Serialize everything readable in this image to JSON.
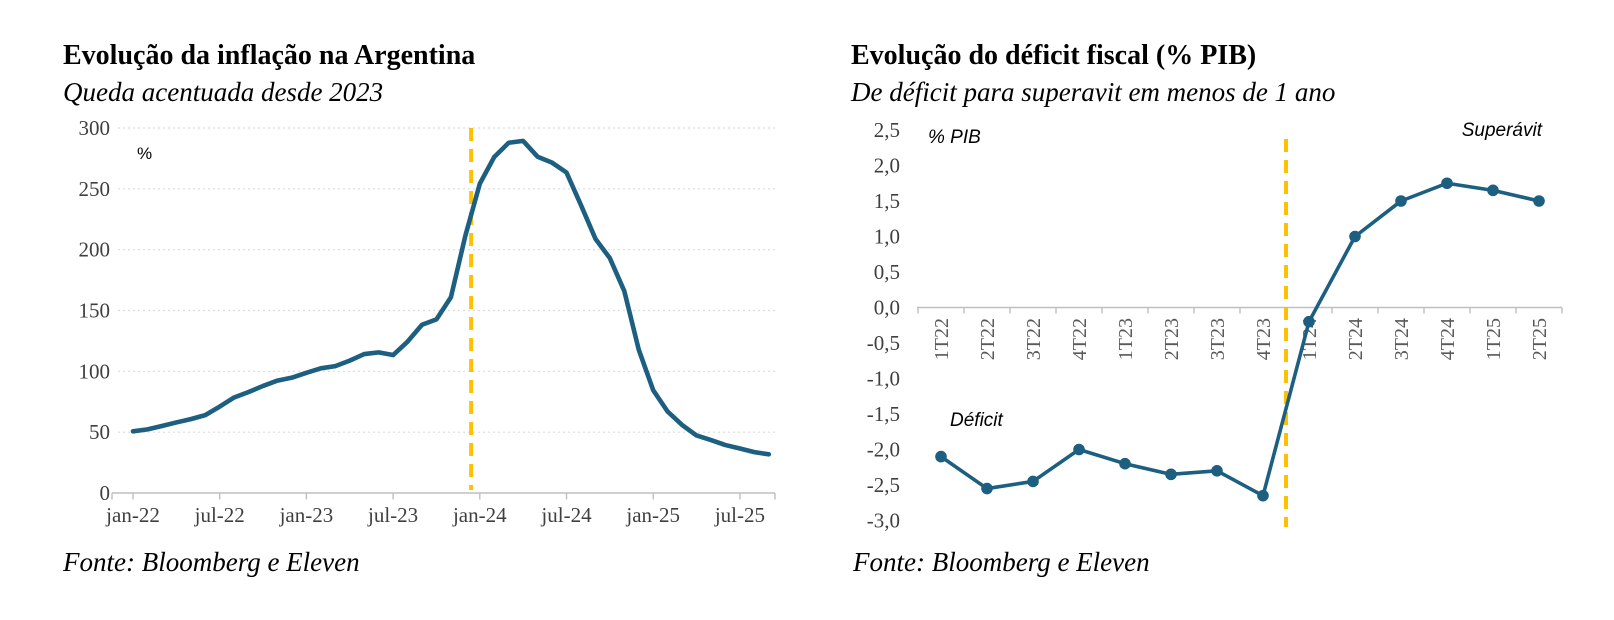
{
  "colors": {
    "line": "#1d5f80",
    "marker": "#1d5f80",
    "highlight": "#FFC000",
    "grid": "#dcdcdc",
    "axis": "#bfbfbf",
    "tick_label": "#3f3f3f",
    "rotated_tick_label": "#595959",
    "text": "#000000",
    "background": "#ffffff"
  },
  "chart_data": [
    {
      "id": "inflation-argentina",
      "type": "line",
      "title": "Evolução da inflação na Argentina",
      "subtitle": "Queda acentuada desde 2023",
      "source": "Fonte: Bloomberg e Eleven",
      "unit_label": "%",
      "legend": "none",
      "grid": "horizontal-dotted",
      "line_color": "#1d5f80",
      "ylim": [
        0,
        300
      ],
      "ytick_step": 50,
      "yticks": [
        0,
        50,
        100,
        150,
        200,
        250,
        300
      ],
      "xtick_labels": [
        "jan-22",
        "jul-22",
        "jan-23",
        "jul-23",
        "jan-24",
        "jul-24",
        "jan-25",
        "jul-25"
      ],
      "xtick_indices": [
        0,
        6,
        12,
        18,
        24,
        30,
        36,
        42
      ],
      "x": [
        "jan-22",
        "fev-22",
        "mar-22",
        "abr-22",
        "mai-22",
        "jun-22",
        "jul-22",
        "ago-22",
        "set-22",
        "out-22",
        "nov-22",
        "dez-22",
        "jan-23",
        "fev-23",
        "mar-23",
        "abr-23",
        "mai-23",
        "jun-23",
        "jul-23",
        "ago-23",
        "set-23",
        "out-23",
        "nov-23",
        "dez-23",
        "jan-24",
        "fev-24",
        "mar-24",
        "abr-24",
        "mai-24",
        "jun-24",
        "jul-24",
        "ago-24",
        "set-24",
        "out-24",
        "nov-24",
        "dez-24",
        "jan-25",
        "fev-25",
        "mar-25",
        "abr-25",
        "mai-25",
        "jun-25",
        "jul-25",
        "ago-25",
        "set-25"
      ],
      "values": [
        50.7,
        52.3,
        55.1,
        58.0,
        60.7,
        64.0,
        71.0,
        78.5,
        83.0,
        88.0,
        92.4,
        94.8,
        98.8,
        102.5,
        104.3,
        108.8,
        114.2,
        115.6,
        113.4,
        124.4,
        138.3,
        142.7,
        160.9,
        211.4,
        254.2,
        276.2,
        287.9,
        289.4,
        276.4,
        271.5,
        263.4,
        236.7,
        209.0,
        193.0,
        166.0,
        117.8,
        84.5,
        66.9,
        55.9,
        47.3,
        43.5,
        39.4,
        36.6,
        33.6,
        31.8
      ],
      "highlight_line": {
        "label": "jan-24",
        "x_index": 23.4,
        "color": "#FFC000",
        "style": "dashed"
      }
    },
    {
      "id": "fiscal-deficit-pib",
      "type": "line",
      "title": "Evolução do déficit fiscal (% PIB)",
      "subtitle": "De déficit para superavit em menos de 1 ano",
      "source": "Fonte: Bloomberg e Eleven",
      "unit_label": "% PIB",
      "legend": "none",
      "grid": "none",
      "line_color": "#1d5f80",
      "markers": true,
      "ylim": [
        -3.0,
        2.5
      ],
      "ytick_step": 0.5,
      "yticks": [
        2.5,
        2.0,
        1.5,
        1.0,
        0.5,
        0.0,
        -0.5,
        -1.0,
        -1.5,
        -2.0,
        -2.5,
        -3.0
      ],
      "ytick_labels": [
        "2,5",
        "2,0",
        "1,5",
        "1,0",
        "0,5",
        "0,0",
        "-0,5",
        "-1,0",
        "-1,5",
        "-2,0",
        "-2,5",
        "-3,0"
      ],
      "categories": [
        "1T22",
        "2T22",
        "3T22",
        "4T22",
        "1T23",
        "2T23",
        "3T23",
        "4T23",
        "1T24",
        "2T24",
        "3T24",
        "4T24",
        "1T25",
        "2T25"
      ],
      "values": [
        -2.1,
        -2.55,
        -2.45,
        -2.0,
        -2.2,
        -2.35,
        -2.3,
        -2.65,
        -0.2,
        1.0,
        1.5,
        1.75,
        1.65,
        1.5
      ],
      "annotations": [
        {
          "name": "superavit-annotation",
          "text": "Superávit"
        },
        {
          "name": "deficit-annotation",
          "text": "Déficit"
        }
      ],
      "highlight_line": {
        "label": "entre 4T23 e 1T24",
        "x_index": 7.5,
        "color": "#FFC000",
        "style": "dashed"
      }
    }
  ]
}
